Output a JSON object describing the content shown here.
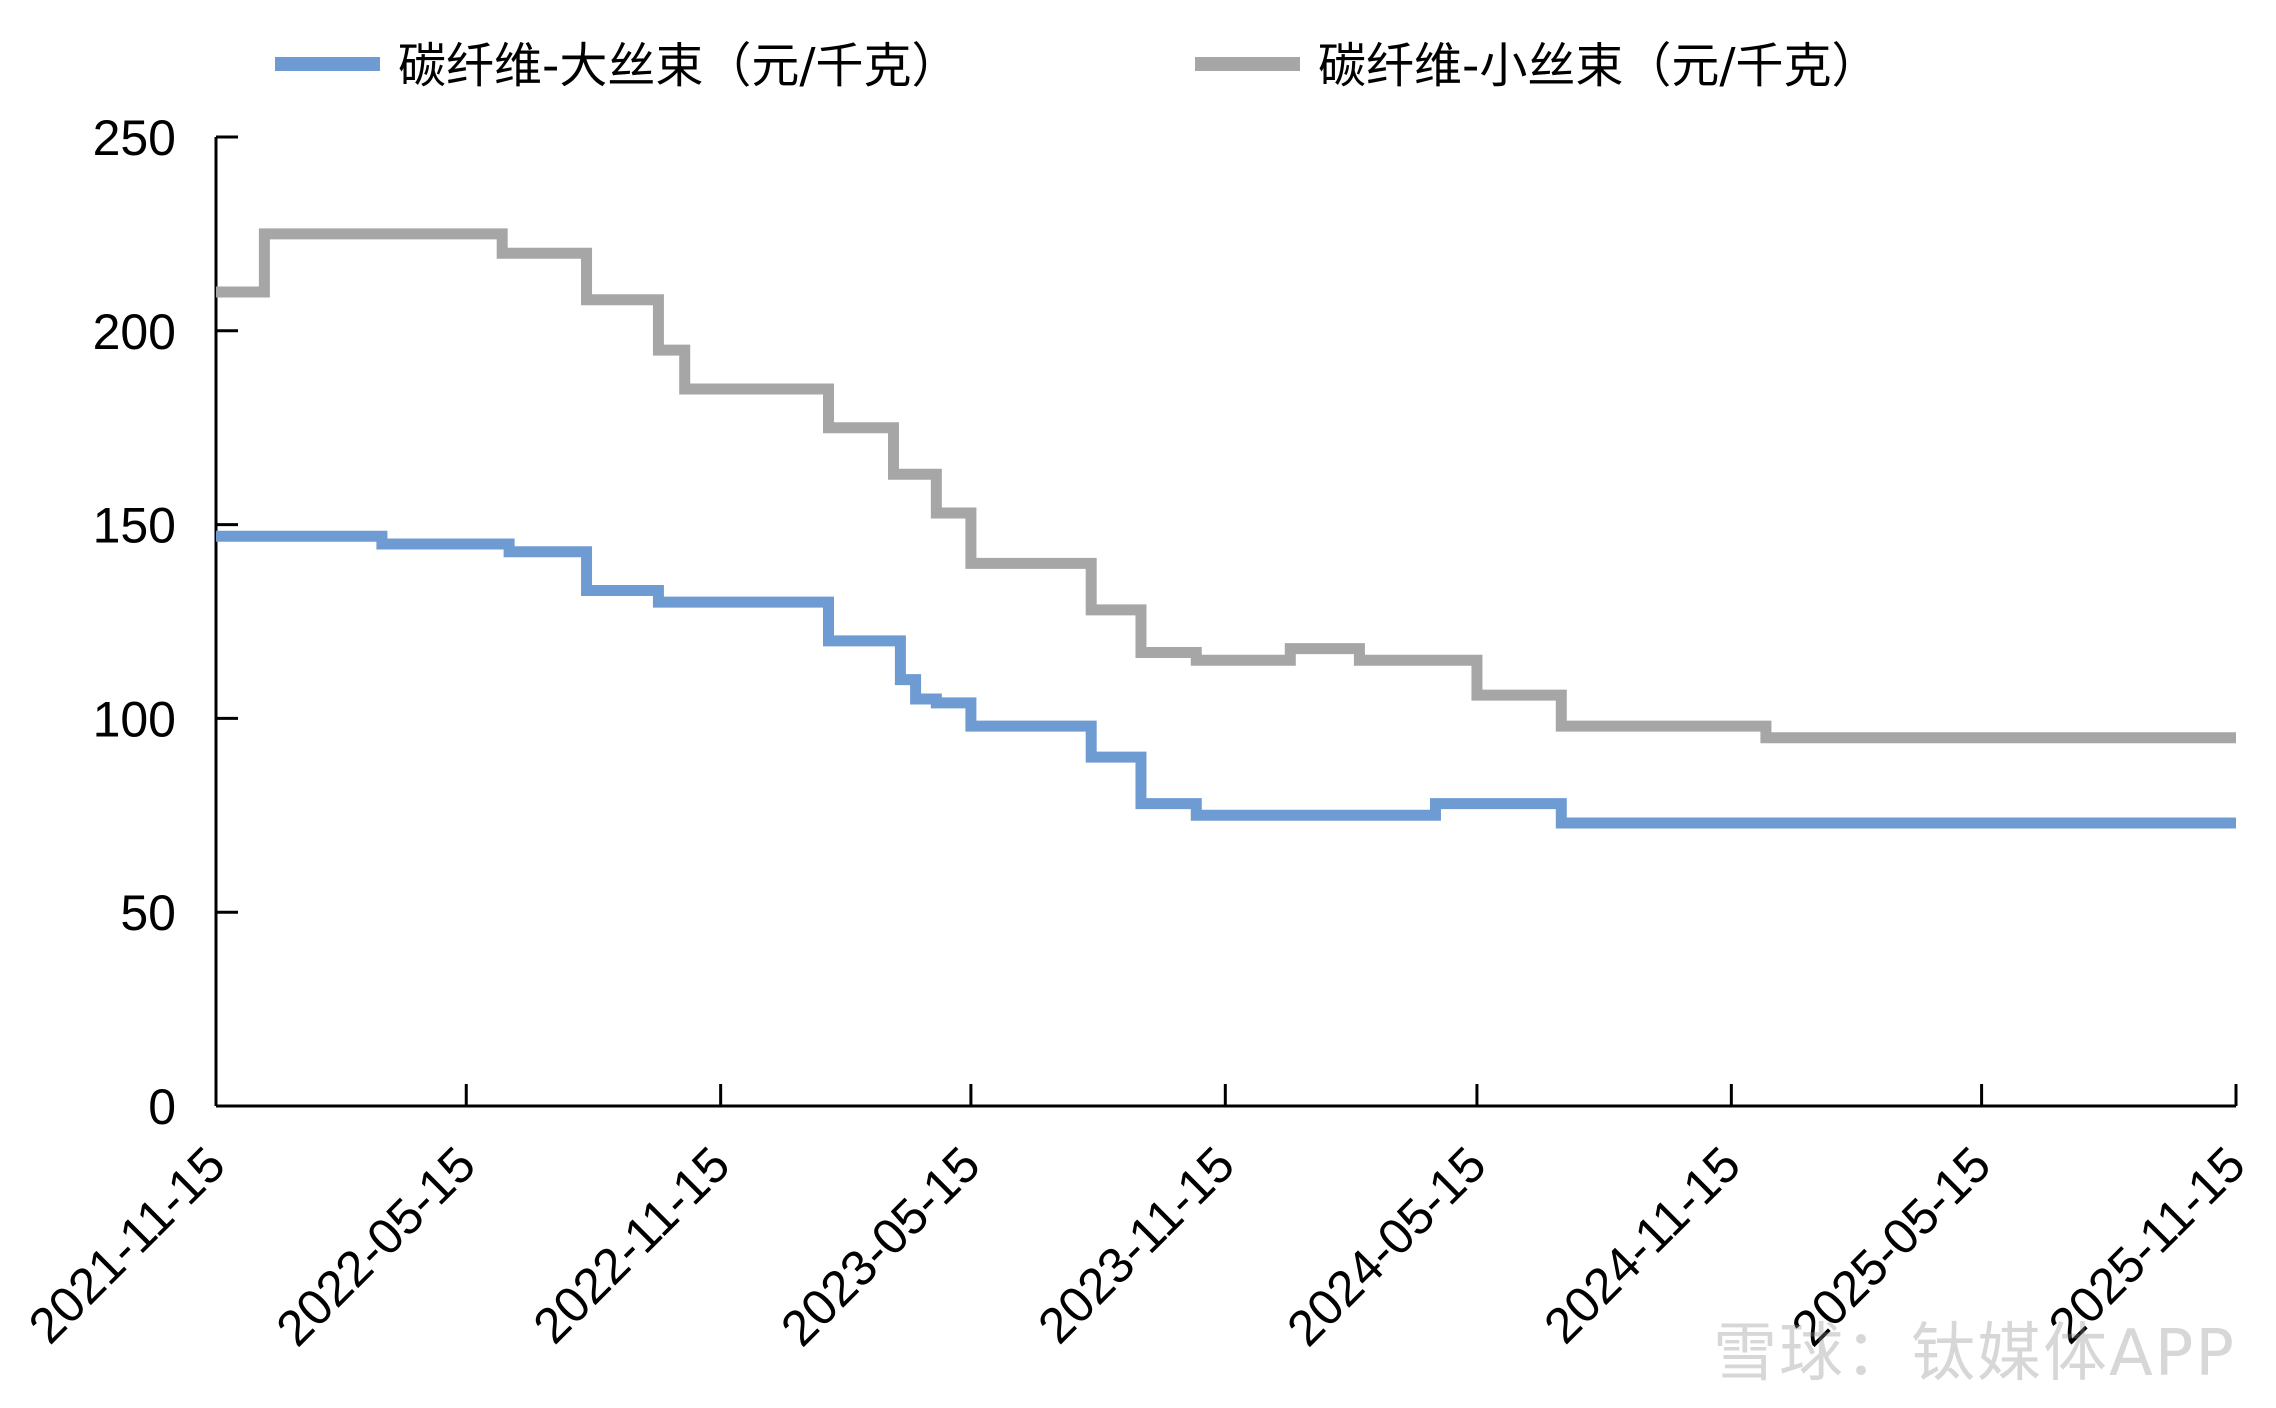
{
  "chart_data": {
    "type": "line",
    "step": true,
    "title": "",
    "xlabel": "",
    "ylabel": "",
    "ylim": [
      0,
      250
    ],
    "y_ticks": [
      0,
      50,
      100,
      150,
      200,
      250
    ],
    "x_range": [
      "2021-11-15",
      "2025-11-15"
    ],
    "x_ticks": [
      "2021-11-15",
      "2022-05-15",
      "2022-11-15",
      "2023-05-15",
      "2023-11-15",
      "2024-05-15",
      "2024-11-15",
      "2025-05-15",
      "2025-11-15"
    ],
    "legend_position": "top",
    "grid": false,
    "series": [
      {
        "name": "碳纤维-大丝束（元/千克）",
        "color": "#6f9bd3",
        "points": [
          [
            "2021-11-15",
            147
          ],
          [
            "2022-03-15",
            145
          ],
          [
            "2022-06-15",
            143
          ],
          [
            "2022-08-10",
            133
          ],
          [
            "2022-10-01",
            130
          ],
          [
            "2023-02-01",
            120
          ],
          [
            "2023-03-25",
            110
          ],
          [
            "2023-04-05",
            105
          ],
          [
            "2023-04-20",
            104
          ],
          [
            "2023-05-15",
            98
          ],
          [
            "2023-08-10",
            90
          ],
          [
            "2023-09-15",
            78
          ],
          [
            "2023-10-25",
            75
          ],
          [
            "2024-04-15",
            78
          ],
          [
            "2024-07-15",
            73
          ],
          [
            "2025-11-15",
            73
          ]
        ]
      },
      {
        "name": "碳纤维-小丝束（元/千克）",
        "color": "#a6a6a6",
        "points": [
          [
            "2021-11-15",
            210
          ],
          [
            "2021-12-20",
            225
          ],
          [
            "2022-06-10",
            220
          ],
          [
            "2022-08-10",
            208
          ],
          [
            "2022-10-01",
            195
          ],
          [
            "2022-10-20",
            185
          ],
          [
            "2023-02-01",
            175
          ],
          [
            "2023-03-20",
            163
          ],
          [
            "2023-04-20",
            153
          ],
          [
            "2023-05-15",
            140
          ],
          [
            "2023-08-10",
            128
          ],
          [
            "2023-09-15",
            117
          ],
          [
            "2023-10-25",
            115
          ],
          [
            "2024-01-01",
            118
          ],
          [
            "2024-02-20",
            115
          ],
          [
            "2024-05-15",
            106
          ],
          [
            "2024-07-15",
            98
          ],
          [
            "2024-12-10",
            95
          ],
          [
            "2025-11-15",
            95
          ]
        ]
      }
    ]
  },
  "watermark": "雪球：钛媒体APP"
}
